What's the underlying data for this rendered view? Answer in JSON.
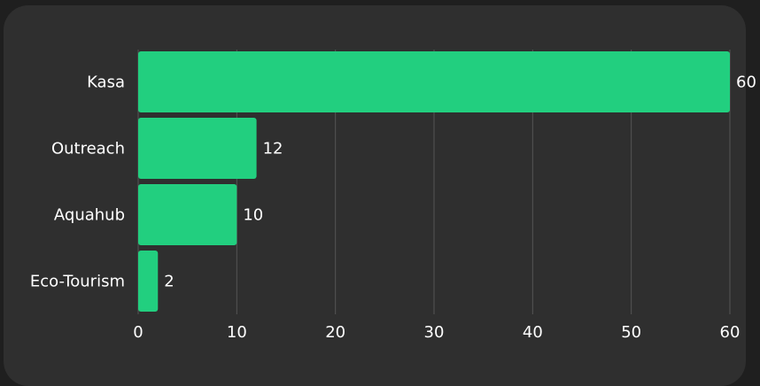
{
  "colors": {
    "page_background": "#1f1f1f",
    "card_background": "#2f2f2f",
    "bar": "#22cf7f",
    "grid": "#555555",
    "text": "#ffffff"
  },
  "chart_data": {
    "type": "bar",
    "orientation": "horizontal",
    "categories": [
      "Kasa",
      "Outreach",
      "Aquahub",
      "Eco-Tourism"
    ],
    "values": [
      60,
      12,
      10,
      2
    ],
    "data_labels": [
      "60",
      "12",
      "10",
      "2"
    ],
    "title": "",
    "xlabel": "",
    "ylabel": "",
    "xlim": [
      0,
      60
    ],
    "x_ticks": [
      0,
      10,
      20,
      30,
      40,
      50,
      60
    ],
    "x_tick_labels": [
      "0",
      "10",
      "20",
      "30",
      "40",
      "50",
      "60"
    ],
    "grid": "vertical",
    "legend": "none"
  }
}
